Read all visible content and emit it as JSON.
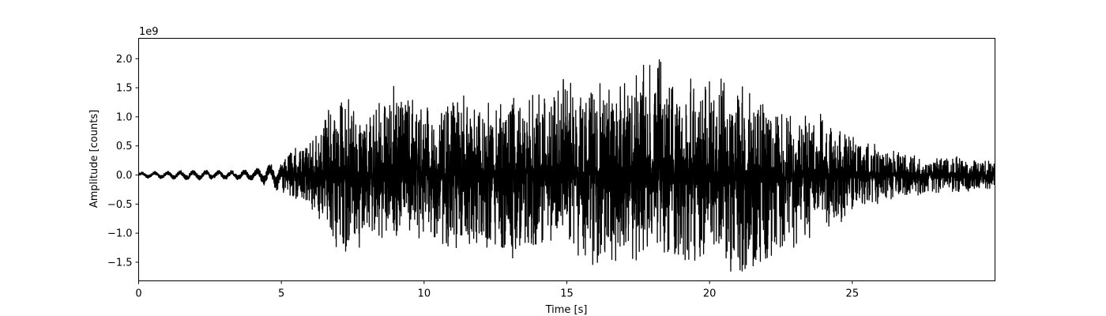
{
  "chart_data": {
    "type": "line",
    "title": "",
    "xlabel": "Time [s]",
    "ylabel": "Amplitude [counts]",
    "y_multiplier_label": "1e9",
    "xlim": [
      0,
      30
    ],
    "ylim": [
      -1.82,
      2.35
    ],
    "x_ticks": [
      0,
      5,
      10,
      15,
      20,
      25
    ],
    "x_tick_labels": [
      "0",
      "5",
      "10",
      "15",
      "20",
      "25"
    ],
    "y_ticks": [
      -1.5,
      -1.0,
      -0.5,
      0.0,
      0.5,
      1.0,
      1.5,
      2.0
    ],
    "y_tick_labels": [
      "−1.5",
      "−1.0",
      "−0.5",
      "0.0",
      "0.5",
      "1.0",
      "1.5",
      "2.0"
    ],
    "grid": false,
    "line_color": "#000000",
    "series": [
      {
        "name": "",
        "x": [
          0,
          1,
          2,
          3,
          4,
          5,
          6,
          7,
          8,
          9,
          10,
          11,
          12,
          13,
          14,
          15,
          16,
          17,
          18,
          19,
          20,
          21,
          22,
          23,
          24,
          25,
          26,
          27,
          28,
          29,
          30
        ],
        "upper_envelope": [
          0.05,
          0.07,
          0.09,
          0.08,
          0.1,
          0.3,
          0.55,
          1.31,
          1.1,
          1.4,
          1.15,
          1.25,
          1.32,
          1.3,
          1.35,
          1.62,
          1.45,
          1.5,
          2.15,
          1.45,
          1.62,
          1.65,
          1.15,
          0.95,
          0.98,
          0.62,
          0.45,
          0.38,
          0.28,
          0.28,
          0.25
        ],
        "lower_envelope": [
          -0.05,
          -0.07,
          -0.1,
          -0.09,
          -0.1,
          -0.25,
          -0.5,
          -1.3,
          -1.1,
          -1.05,
          -1.0,
          -1.3,
          -1.1,
          -1.3,
          -1.2,
          -1.3,
          -1.5,
          -1.3,
          -1.3,
          -1.45,
          -1.3,
          -1.65,
          -1.5,
          -1.2,
          -0.9,
          -0.6,
          -0.45,
          -0.35,
          -0.3,
          -0.28,
          -0.2
        ]
      }
    ]
  }
}
